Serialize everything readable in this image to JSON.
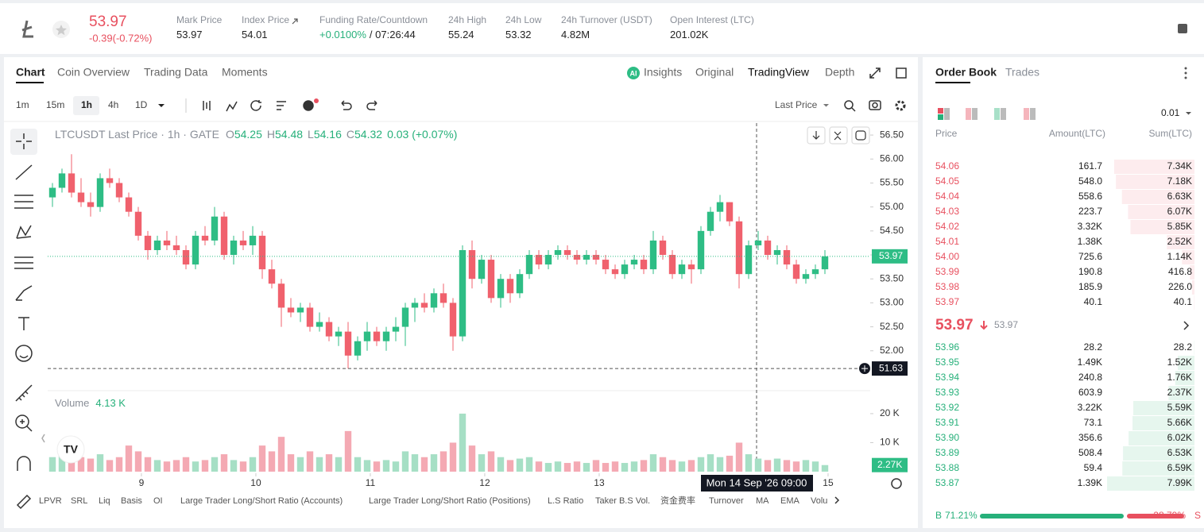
{
  "header": {
    "price": "53.97",
    "change": "-0.39(-0.72%)",
    "stats": [
      {
        "label": "Mark Price",
        "value": "53.97"
      },
      {
        "label": "Index Price",
        "value": "54.01"
      },
      {
        "label": "Funding Rate/Countdown",
        "value": "+0.0100%",
        "value2": "/ 07:26:44"
      },
      {
        "label": "24h High",
        "value": "55.24"
      },
      {
        "label": "24h Low",
        "value": "53.32"
      },
      {
        "label": "24h Turnover (USDT)",
        "value": "4.82M"
      },
      {
        "label": "Open Interest (LTC)",
        "value": "201.02K"
      }
    ]
  },
  "tabs": [
    "Chart",
    "Coin Overview",
    "Trading Data",
    "Moments"
  ],
  "views": [
    "Insights",
    "Original",
    "TradingView",
    "Depth"
  ],
  "intervals": [
    "1m",
    "15m",
    "1h",
    "4h",
    "1D"
  ],
  "price_source": "Last Price",
  "chart_data": {
    "type": "candlestick",
    "legend_title": "LTCUSDT Last Price · 1h · GATE",
    "ohlc_labels": [
      {
        "key": "O",
        "value": "54.25"
      },
      {
        "key": "H",
        "value": "54.48"
      },
      {
        "key": "L",
        "value": "54.16"
      },
      {
        "key": "C",
        "value": "54.32"
      }
    ],
    "legend_change": "0.03 (+0.07%)",
    "open": [
      55.2,
      55.4,
      55.7,
      55.3,
      55.1,
      55.0,
      55.6,
      55.5,
      55.2,
      54.9,
      54.4,
      54.1,
      54.3,
      54.2,
      54.1,
      53.8,
      54.4,
      54.3,
      54.8,
      54.0,
      54.3,
      54.2,
      54.4,
      53.7,
      53.4,
      52.9,
      52.8,
      52.9,
      52.5,
      52.6,
      52.3,
      52.4,
      51.9,
      52.2,
      52.4,
      52.2,
      52.4,
      52.5,
      52.9,
      53.0,
      52.9,
      53.2,
      53.0,
      52.3,
      54.1,
      53.5,
      53.9,
      53.1,
      53.5,
      53.2,
      53.6,
      54.0,
      53.8,
      54.0,
      54.1,
      54.0,
      53.9,
      54.0,
      53.9,
      53.7,
      53.6,
      53.8,
      53.9,
      53.7,
      54.3,
      54.0,
      53.6,
      53.8,
      53.7,
      54.5,
      54.9,
      55.1,
      54.7,
      53.6,
      54.2,
      54.3,
      54.0,
      54.1,
      53.8,
      53.5,
      53.6,
      53.7
    ],
    "high": [
      55.5,
      55.8,
      56.1,
      55.6,
      55.3,
      55.7,
      55.8,
      55.6,
      55.3,
      55.0,
      54.5,
      54.4,
      54.5,
      54.4,
      54.2,
      54.5,
      54.6,
      55.0,
      54.9,
      54.4,
      54.5,
      54.6,
      54.5,
      53.9,
      53.5,
      53.1,
      53.0,
      53.0,
      52.8,
      52.7,
      52.5,
      52.6,
      52.3,
      52.6,
      52.5,
      52.5,
      52.7,
      53.0,
      53.1,
      53.2,
      53.3,
      53.4,
      53.1,
      54.2,
      54.3,
      54.0,
      54.0,
      53.6,
      53.6,
      53.7,
      54.1,
      54.1,
      54.1,
      54.2,
      54.2,
      54.1,
      54.1,
      54.1,
      54.0,
      53.8,
      53.9,
      54.0,
      54.0,
      54.5,
      54.4,
      54.1,
      53.9,
      53.9,
      54.6,
      55.0,
      55.25,
      55.1,
      54.8,
      54.3,
      54.5,
      54.4,
      54.2,
      54.2,
      53.9,
      53.7,
      53.8,
      54.1
    ],
    "low": [
      55.0,
      55.3,
      55.2,
      55.0,
      54.8,
      54.9,
      55.4,
      55.1,
      54.8,
      54.3,
      53.9,
      54.0,
      54.1,
      54.0,
      53.7,
      53.7,
      54.2,
      54.2,
      53.9,
      53.8,
      54.1,
      54.0,
      53.5,
      53.3,
      52.5,
      52.7,
      52.6,
      52.4,
      52.4,
      52.2,
      52.1,
      51.63,
      51.8,
      52.0,
      52.1,
      52.0,
      52.2,
      52.1,
      52.6,
      52.8,
      52.8,
      52.9,
      52.0,
      52.2,
      53.3,
      53.4,
      53.0,
      52.9,
      53.0,
      53.1,
      53.5,
      53.7,
      53.7,
      53.9,
      53.9,
      53.8,
      53.8,
      53.8,
      53.6,
      53.5,
      53.5,
      53.7,
      53.6,
      53.6,
      53.9,
      53.5,
      53.5,
      53.4,
      53.6,
      54.4,
      54.7,
      54.6,
      53.3,
      53.5,
      54.1,
      53.9,
      53.8,
      53.7,
      53.4,
      53.4,
      53.5,
      53.6
    ],
    "close": [
      55.4,
      55.7,
      55.3,
      55.1,
      55.0,
      55.6,
      55.5,
      55.2,
      54.9,
      54.4,
      54.1,
      54.3,
      54.2,
      54.1,
      53.8,
      54.4,
      54.3,
      54.8,
      54.0,
      54.3,
      54.2,
      54.4,
      53.7,
      53.4,
      52.9,
      52.8,
      52.9,
      52.5,
      52.6,
      52.3,
      52.4,
      51.9,
      52.2,
      52.4,
      52.2,
      52.4,
      52.5,
      52.9,
      53.0,
      52.9,
      53.2,
      53.0,
      52.3,
      54.1,
      53.5,
      53.9,
      53.1,
      53.5,
      53.2,
      53.6,
      54.0,
      53.8,
      54.0,
      54.1,
      54.0,
      53.9,
      54.0,
      53.9,
      53.7,
      53.6,
      53.8,
      53.9,
      53.7,
      54.3,
      54.0,
      53.6,
      53.8,
      53.7,
      54.5,
      54.9,
      55.1,
      54.7,
      53.6,
      54.2,
      54.3,
      54.0,
      54.1,
      53.8,
      53.5,
      53.6,
      53.7,
      53.97
    ],
    "volume": [
      5000,
      7000,
      6000,
      5000,
      4500,
      6000,
      4000,
      5000,
      9000,
      7000,
      5000,
      4000,
      3500,
      4000,
      5000,
      3500,
      4000,
      5000,
      6000,
      4000,
      3500,
      5000,
      9000,
      7000,
      12000,
      6000,
      5000,
      7000,
      5000,
      6000,
      5000,
      14000,
      5000,
      4000,
      3500,
      4000,
      3500,
      7000,
      6000,
      5000,
      6000,
      7000,
      10000,
      20000,
      9000,
      6000,
      7000,
      5000,
      4000,
      4500,
      5000,
      3500,
      3000,
      3500,
      3000,
      3500,
      3000,
      4000,
      3000,
      3500,
      3000,
      3500,
      4000,
      6000,
      5000,
      4000,
      3500,
      4000,
      5000,
      6000,
      5000,
      5500,
      10000,
      6000,
      4500,
      4000,
      4500,
      4000,
      3500,
      4000,
      3500,
      2270
    ],
    "up_color": "#2ebd85",
    "down_color": "#f0616d",
    "volume_up_color": "#a6dfc5",
    "volume_down_color": "#f4a9b3",
    "xlim": [
      -0.5,
      85.75
    ],
    "xticks": [
      {
        "value": 9.33,
        "label": "9"
      },
      {
        "value": 21.33,
        "label": "10"
      },
      {
        "value": 33.33,
        "label": "11"
      },
      {
        "value": 45.33,
        "label": "12"
      },
      {
        "value": 57.33,
        "label": "13"
      },
      {
        "value": 81.33,
        "label": "15"
      }
    ],
    "ylim": [
      51.4,
      56.75
    ],
    "yticks": [
      {
        "value": 52,
        "label": "52.00"
      },
      {
        "value": 52.5,
        "label": "52.50"
      },
      {
        "value": 53,
        "label": "53.00"
      },
      {
        "value": 53.5,
        "label": "53.50"
      },
      {
        "value": 54,
        "label": "54.00"
      },
      {
        "value": 54.5,
        "label": "54.50"
      },
      {
        "value": 55,
        "label": "55.00"
      },
      {
        "value": 55.5,
        "label": "55.50"
      },
      {
        "value": 56,
        "label": "56.00"
      },
      {
        "value": 56.5,
        "label": "56.50"
      }
    ],
    "last_price": 53.97,
    "last_price_label": "53.97",
    "crosshair_price": 51.63,
    "crosshair_price_label": "51.63",
    "crosshair_time": "Mon 14 Sep '26  09:00",
    "volume_title": "Volume",
    "volume_value": "4.13 K",
    "volume_ylim": [
      0,
      26000
    ],
    "volume_yticks": [
      {
        "value": 10000,
        "label": "10 K"
      },
      {
        "value": 20000,
        "label": "20 K"
      }
    ],
    "last_volume_label": "2.27K"
  },
  "indicators": [
    "LPVR",
    "SRL",
    "Liq",
    "Basis",
    "OI",
    "Large Trader Long/Short Ratio (Accounts)",
    "Large Trader Long/Short Ratio (Positions)",
    "L.S Ratio",
    "Taker B.S Vol.",
    "资金费率",
    "Turnover",
    "MA",
    "EMA",
    "Volu"
  ],
  "order_book": {
    "tabs": [
      "Order Book",
      "Trades"
    ],
    "tick_size": "0.01",
    "columns": [
      "Price",
      "Amount(LTC)",
      "Sum(LTC)"
    ],
    "asks": [
      {
        "price": "54.06",
        "amount": "161.7",
        "sum": 7340,
        "sum_label": "7.34K"
      },
      {
        "price": "54.05",
        "amount": "548.0",
        "sum": 7180,
        "sum_label": "7.18K"
      },
      {
        "price": "54.04",
        "amount": "558.6",
        "sum": 6630,
        "sum_label": "6.63K"
      },
      {
        "price": "54.03",
        "amount": "223.7",
        "sum": 6070,
        "sum_label": "6.07K"
      },
      {
        "price": "54.02",
        "amount": "3.32K",
        "sum": 5850,
        "sum_label": "5.85K"
      },
      {
        "price": "54.01",
        "amount": "1.38K",
        "sum": 2520,
        "sum_label": "2.52K"
      },
      {
        "price": "54.00",
        "amount": "725.6",
        "sum": 1140,
        "sum_label": "1.14K"
      },
      {
        "price": "53.99",
        "amount": "190.8",
        "sum": 416.8,
        "sum_label": "416.8"
      },
      {
        "price": "53.98",
        "amount": "185.9",
        "sum": 226,
        "sum_label": "226.0"
      },
      {
        "price": "53.97",
        "amount": "40.1",
        "sum": 40.1,
        "sum_label": "40.1"
      }
    ],
    "mid_price": "53.97",
    "mark_price": "53.97",
    "bids": [
      {
        "price": "53.96",
        "amount": "28.2",
        "sum": 28.2,
        "sum_label": "28.2"
      },
      {
        "price": "53.95",
        "amount": "1.49K",
        "sum": 1520,
        "sum_label": "1.52K"
      },
      {
        "price": "53.94",
        "amount": "240.8",
        "sum": 1760,
        "sum_label": "1.76K"
      },
      {
        "price": "53.93",
        "amount": "603.9",
        "sum": 2370,
        "sum_label": "2.37K"
      },
      {
        "price": "53.92",
        "amount": "3.22K",
        "sum": 5590,
        "sum_label": "5.59K"
      },
      {
        "price": "53.91",
        "amount": "73.1",
        "sum": 5660,
        "sum_label": "5.66K"
      },
      {
        "price": "53.90",
        "amount": "356.6",
        "sum": 6020,
        "sum_label": "6.02K"
      },
      {
        "price": "53.89",
        "amount": "508.4",
        "sum": 6530,
        "sum_label": "6.53K"
      },
      {
        "price": "53.88",
        "amount": "59.4",
        "sum": 6590,
        "sum_label": "6.59K"
      },
      {
        "price": "53.87",
        "amount": "1.39K",
        "sum": 7990,
        "sum_label": "7.99K"
      }
    ],
    "ratio": {
      "buy_letter": "B",
      "buy": 71.21,
      "buy_label": "71.21%",
      "sell": 28.79,
      "sell_label": "28.79%",
      "sell_letter": "S"
    }
  }
}
